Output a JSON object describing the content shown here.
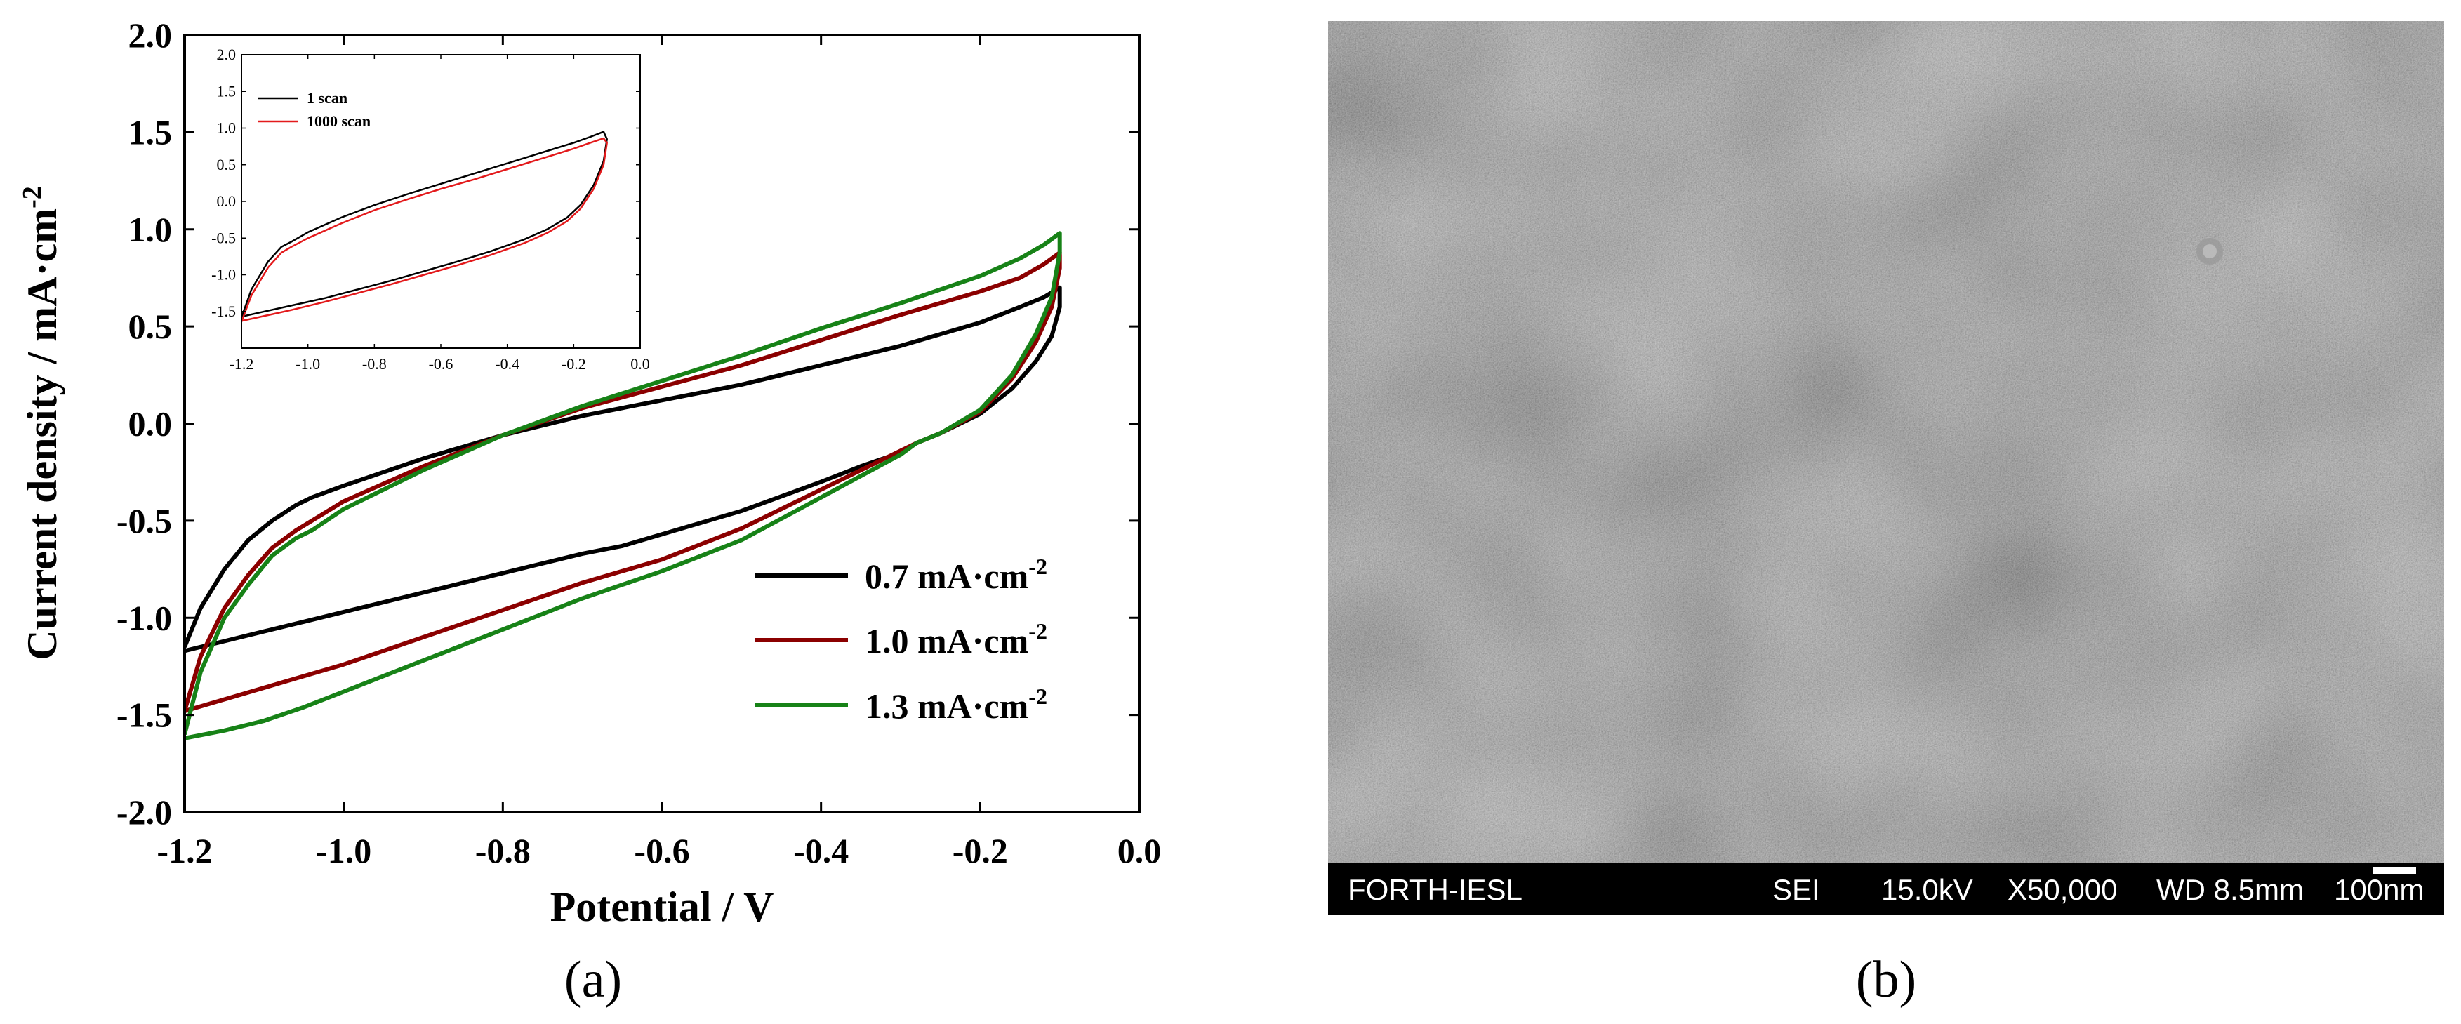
{
  "chart_data": [
    {
      "type": "line",
      "panel_label": "(a)",
      "xlabel": "Potential / V",
      "ylabel": "Current density / mA·cm",
      "ylabel_sup": "-2",
      "xlim": [
        -1.2,
        0.0
      ],
      "ylim": [
        -2.0,
        2.0
      ],
      "xticks": [
        "-1.2",
        "-1.0",
        "-0.8",
        "-0.6",
        "-0.4",
        "-0.2",
        "0.0"
      ],
      "yticks": [
        "2.0",
        "1.5",
        "1.0",
        "0.5",
        "0.0",
        "-0.5",
        "-1.0",
        "-1.5",
        "-2.0"
      ],
      "legend_position": "lower-right",
      "series": [
        {
          "name": "0.7 mA·cm",
          "name_sup": "-2",
          "color": "#000000",
          "x": [
            -1.2,
            -1.18,
            -1.15,
            -1.12,
            -1.09,
            -1.06,
            -1.04,
            -1.0,
            -0.9,
            -0.8,
            -0.7,
            -0.6,
            -0.5,
            -0.4,
            -0.3,
            -0.2,
            -0.15,
            -0.12,
            -0.1,
            -0.1,
            -0.11,
            -0.13,
            -0.16,
            -0.2,
            -0.25,
            -0.28,
            -0.3,
            -0.35,
            -0.4,
            -0.5,
            -0.6,
            -0.65,
            -0.7,
            -0.8,
            -0.9,
            -1.0,
            -1.05,
            -1.1,
            -1.15,
            -1.2
          ],
          "y": [
            -1.15,
            -0.95,
            -0.75,
            -0.6,
            -0.5,
            -0.42,
            -0.38,
            -0.32,
            -0.18,
            -0.06,
            0.04,
            0.12,
            0.2,
            0.3,
            0.4,
            0.52,
            0.6,
            0.65,
            0.7,
            0.6,
            0.45,
            0.32,
            0.18,
            0.05,
            -0.05,
            -0.1,
            -0.15,
            -0.22,
            -0.3,
            -0.45,
            -0.57,
            -0.63,
            -0.67,
            -0.77,
            -0.87,
            -0.97,
            -1.02,
            -1.07,
            -1.12,
            -1.17
          ]
        },
        {
          "name": "1.0 mA·cm",
          "name_sup": "-2",
          "color": "#8b0000",
          "x": [
            -1.2,
            -1.18,
            -1.15,
            -1.12,
            -1.09,
            -1.06,
            -1.04,
            -1.0,
            -0.9,
            -0.8,
            -0.7,
            -0.6,
            -0.5,
            -0.4,
            -0.3,
            -0.2,
            -0.15,
            -0.12,
            -0.1,
            -0.1,
            -0.11,
            -0.13,
            -0.16,
            -0.2,
            -0.25,
            -0.28,
            -0.3,
            -0.35,
            -0.4,
            -0.5,
            -0.6,
            -0.65,
            -0.7,
            -0.8,
            -0.9,
            -1.0,
            -1.05,
            -1.1,
            -1.15,
            -1.2
          ],
          "y": [
            -1.48,
            -1.2,
            -0.95,
            -0.78,
            -0.64,
            -0.55,
            -0.5,
            -0.4,
            -0.22,
            -0.06,
            0.08,
            0.19,
            0.3,
            0.43,
            0.56,
            0.68,
            0.75,
            0.82,
            0.88,
            0.8,
            0.6,
            0.42,
            0.23,
            0.06,
            -0.05,
            -0.1,
            -0.14,
            -0.24,
            -0.34,
            -0.54,
            -0.7,
            -0.76,
            -0.82,
            -0.96,
            -1.1,
            -1.24,
            -1.3,
            -1.36,
            -1.42,
            -1.48
          ]
        },
        {
          "name": "1.3 mA·cm",
          "name_sup": "-2",
          "color": "#178217",
          "x": [
            -1.2,
            -1.18,
            -1.15,
            -1.12,
            -1.09,
            -1.06,
            -1.04,
            -1.0,
            -0.9,
            -0.8,
            -0.7,
            -0.6,
            -0.5,
            -0.4,
            -0.3,
            -0.2,
            -0.15,
            -0.12,
            -0.1,
            -0.1,
            -0.11,
            -0.13,
            -0.16,
            -0.2,
            -0.25,
            -0.28,
            -0.3,
            -0.35,
            -0.4,
            -0.5,
            -0.6,
            -0.65,
            -0.7,
            -0.8,
            -0.9,
            -1.0,
            -1.05,
            -1.1,
            -1.15,
            -1.2
          ],
          "y": [
            -1.6,
            -1.28,
            -1.0,
            -0.83,
            -0.68,
            -0.59,
            -0.55,
            -0.44,
            -0.24,
            -0.06,
            0.09,
            0.22,
            0.35,
            0.49,
            0.62,
            0.76,
            0.85,
            0.92,
            0.98,
            0.88,
            0.65,
            0.46,
            0.25,
            0.07,
            -0.05,
            -0.1,
            -0.16,
            -0.27,
            -0.38,
            -0.6,
            -0.76,
            -0.83,
            -0.9,
            -1.06,
            -1.22,
            -1.38,
            -1.46,
            -1.53,
            -1.58,
            -1.62
          ]
        }
      ]
    },
    {
      "type": "line",
      "panel_label": "",
      "inset": true,
      "xlim": [
        -1.2,
        0.0
      ],
      "ylim": [
        -2.0,
        2.0
      ],
      "xticks": [
        "-1.2",
        "-1.0",
        "-0.8",
        "-0.6",
        "-0.4",
        "-0.2",
        "0.0"
      ],
      "yticks": [
        "2.0",
        "1.5",
        "1.0",
        "0.5",
        "0.0",
        "-0.5",
        "-1.0",
        "-1.5"
      ],
      "legend_position": "top-left",
      "series": [
        {
          "name": "1 scan",
          "color": "#000000",
          "x": [
            -1.2,
            -1.17,
            -1.12,
            -1.08,
            -1.05,
            -1.0,
            -0.9,
            -0.8,
            -0.7,
            -0.6,
            -0.5,
            -0.4,
            -0.3,
            -0.2,
            -0.15,
            -0.11,
            -0.1,
            -0.11,
            -0.14,
            -0.18,
            -0.22,
            -0.28,
            -0.35,
            -0.45,
            -0.55,
            -0.65,
            -0.75,
            -0.85,
            -0.95,
            -1.05,
            -1.15,
            -1.2
          ],
          "y": [
            -1.58,
            -1.2,
            -0.82,
            -0.62,
            -0.55,
            -0.42,
            -0.22,
            -0.05,
            0.1,
            0.24,
            0.38,
            0.52,
            0.66,
            0.8,
            0.88,
            0.95,
            0.85,
            0.55,
            0.22,
            -0.05,
            -0.22,
            -0.38,
            -0.52,
            -0.68,
            -0.82,
            -0.95,
            -1.08,
            -1.2,
            -1.32,
            -1.42,
            -1.52,
            -1.57
          ]
        },
        {
          "name": "1000 scan",
          "color": "#e31a1c",
          "x": [
            -1.2,
            -1.17,
            -1.12,
            -1.08,
            -1.05,
            -1.0,
            -0.9,
            -0.8,
            -0.7,
            -0.6,
            -0.5,
            -0.4,
            -0.3,
            -0.2,
            -0.15,
            -0.11,
            -0.1,
            -0.11,
            -0.14,
            -0.18,
            -0.22,
            -0.28,
            -0.35,
            -0.45,
            -0.55,
            -0.65,
            -0.75,
            -0.85,
            -0.95,
            -1.05,
            -1.15,
            -1.2
          ],
          "y": [
            -1.64,
            -1.28,
            -0.9,
            -0.7,
            -0.62,
            -0.5,
            -0.3,
            -0.12,
            0.03,
            0.17,
            0.3,
            0.44,
            0.58,
            0.72,
            0.8,
            0.86,
            0.8,
            0.5,
            0.17,
            -0.1,
            -0.27,
            -0.43,
            -0.57,
            -0.73,
            -0.87,
            -1.0,
            -1.13,
            -1.25,
            -1.37,
            -1.48,
            -1.58,
            -1.63
          ]
        }
      ]
    }
  ],
  "sem": {
    "panel_label": "(b)",
    "info_bar": {
      "org": "FORTH-IESL",
      "detector": "SEI",
      "voltage": "15.0kV",
      "magnification": "X50,000",
      "working_distance": "WD 8.5mm",
      "scale": "100nm"
    },
    "colors": {
      "background": "#4a4a4a",
      "bar": "#000000"
    }
  }
}
